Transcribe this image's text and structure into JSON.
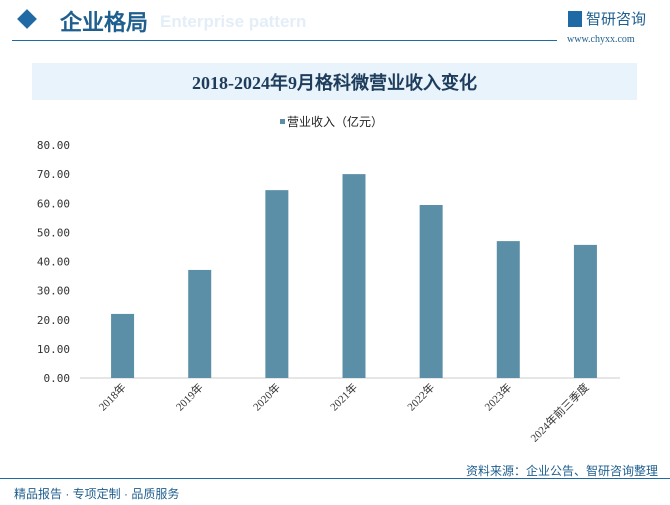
{
  "header": {
    "section_title": "企业格局",
    "section_subtitle": "Enterprise pattern",
    "brand": "智研咨询",
    "url": "www.chyxx.com"
  },
  "footer": {
    "left": "精品报告 · 专项定制 · 品质服务",
    "source": "资料来源：企业公告、智研咨询整理"
  },
  "colors": {
    "bar": "#5b8fa8",
    "accent": "#1f6aa5"
  },
  "chart_data": {
    "type": "bar",
    "title": "2018-2024年9月格科微营业收入变化",
    "legend": [
      "营业收入（亿元）"
    ],
    "categories": [
      "2018年",
      "2019年",
      "2020年",
      "2021年",
      "2022年",
      "2023年",
      "2024年前三季度"
    ],
    "values": [
      22.0,
      37.1,
      64.5,
      70.0,
      59.4,
      47.0,
      45.7
    ],
    "yticks": [
      "0.00",
      "10.00",
      "20.00",
      "30.00",
      "40.00",
      "50.00",
      "60.00",
      "70.00",
      "80.00"
    ],
    "ylim": [
      0,
      80
    ],
    "xlabel": "",
    "ylabel": ""
  }
}
